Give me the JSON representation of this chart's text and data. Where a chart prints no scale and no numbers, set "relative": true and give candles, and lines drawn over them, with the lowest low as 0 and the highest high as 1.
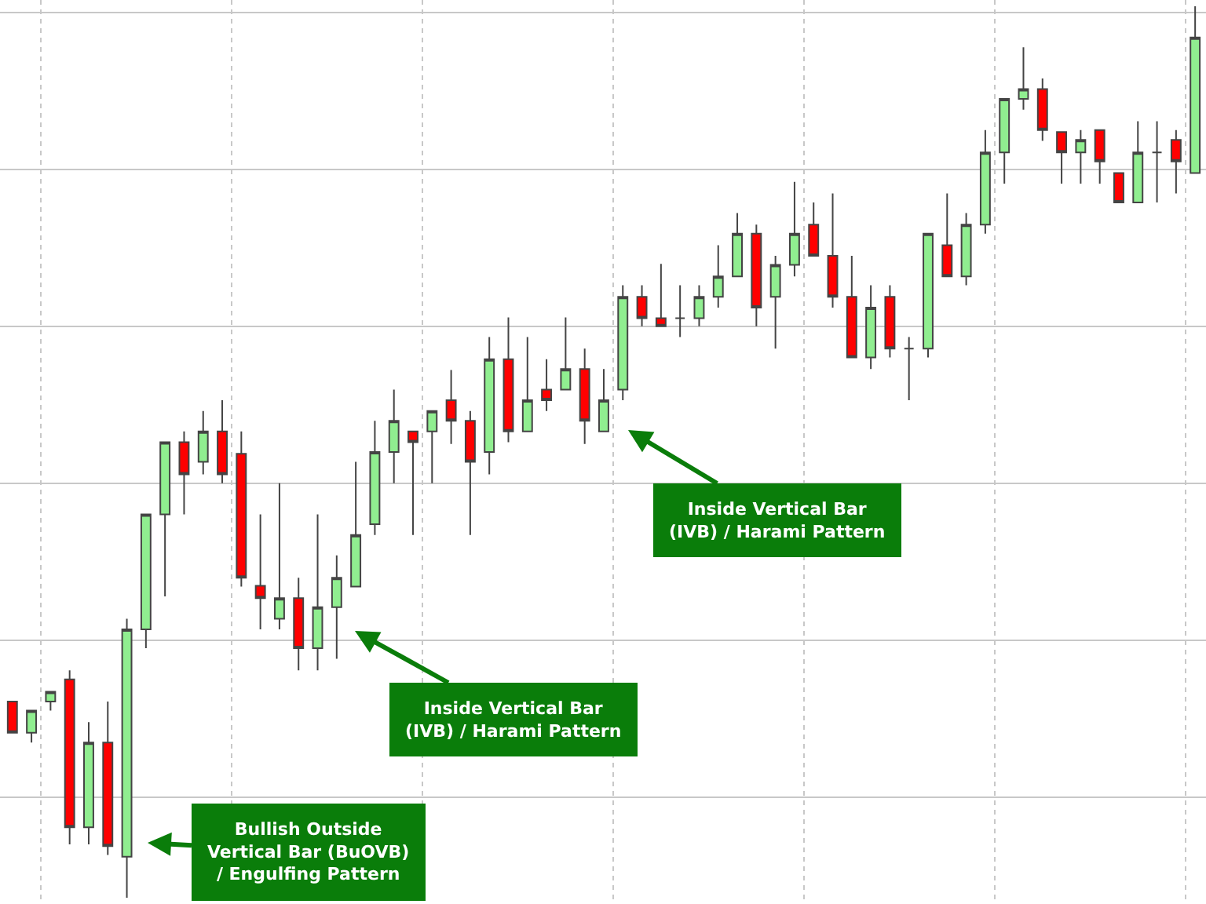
{
  "chart_data": {
    "type": "candlestick",
    "relative": true,
    "grid": true,
    "categories": [
      null,
      null,
      null,
      null,
      null,
      null,
      null,
      null,
      null,
      null,
      null,
      null,
      null,
      null,
      null,
      null,
      null,
      null,
      null,
      null,
      null,
      null,
      null,
      null,
      null,
      null,
      null,
      null,
      null,
      null,
      null,
      null,
      null,
      null,
      null,
      null,
      null,
      null,
      null,
      null,
      null,
      null,
      null,
      null,
      null,
      null,
      null,
      null,
      null,
      null,
      null,
      null,
      null,
      null,
      null,
      null,
      null,
      null,
      null,
      null,
      null,
      null,
      null
    ],
    "ohlc": [
      [
        0.22,
        0.22,
        0.185,
        0.185
      ],
      [
        0.185,
        0.21,
        0.174,
        0.21
      ],
      [
        0.22,
        0.231,
        0.21,
        0.231
      ],
      [
        0.245,
        0.255,
        0.06,
        0.079
      ],
      [
        0.079,
        0.197,
        0.06,
        0.174
      ],
      [
        0.174,
        0.22,
        0.048,
        0.058
      ],
      [
        0.046,
        0.313,
        0,
        0.301
      ],
      [
        0.301,
        0.43,
        0.28,
        0.43
      ],
      [
        0.43,
        0.511,
        0.338,
        0.511
      ],
      [
        0.511,
        0.523,
        0.43,
        0.475
      ],
      [
        0.489,
        0.546,
        0.475,
        0.523
      ],
      [
        0.523,
        0.558,
        0.465,
        0.475
      ],
      [
        0.498,
        0.523,
        0.349,
        0.359
      ],
      [
        0.35,
        0.43,
        0.301,
        0.336
      ],
      [
        0.313,
        0.465,
        0.301,
        0.336
      ],
      [
        0.336,
        0.359,
        0.255,
        0.28
      ],
      [
        0.28,
        0.43,
        0.255,
        0.326
      ],
      [
        0.326,
        0.384,
        0.268,
        0.359
      ],
      [
        0.349,
        0.489,
        0.349,
        0.407
      ],
      [
        0.419,
        0.535,
        0.407,
        0.5
      ],
      [
        0.5,
        0.57,
        0.465,
        0.535
      ],
      [
        0.523,
        0.523,
        0.407,
        0.511
      ],
      [
        0.523,
        0.546,
        0.465,
        0.546
      ],
      [
        0.558,
        0.592,
        0.509,
        0.535
      ],
      [
        0.535,
        0.546,
        0.407,
        0.489
      ],
      [
        0.5,
        0.629,
        0.475,
        0.604
      ],
      [
        0.604,
        0.651,
        0.511,
        0.523
      ],
      [
        0.523,
        0.629,
        0.523,
        0.558
      ],
      [
        0.57,
        0.604,
        0.546,
        0.558
      ],
      [
        0.57,
        0.651,
        0.57,
        0.593
      ],
      [
        0.593,
        0.616,
        0.509,
        0.535
      ],
      [
        0.523,
        0.593,
        0.523,
        0.558
      ],
      [
        0.57,
        0.687,
        0.558,
        0.674
      ],
      [
        0.674,
        0.687,
        0.641,
        0.65
      ],
      [
        0.65,
        0.711,
        0.641,
        0.641
      ],
      [
        0.65,
        0.687,
        0.629,
        0.65
      ],
      [
        0.65,
        0.687,
        0.641,
        0.674
      ],
      [
        0.674,
        0.732,
        0.662,
        0.697
      ],
      [
        0.697,
        0.768,
        0.697,
        0.745
      ],
      [
        0.745,
        0.755,
        0.641,
        0.662
      ],
      [
        0.674,
        0.72,
        0.616,
        0.71
      ],
      [
        0.71,
        0.803,
        0.697,
        0.745
      ],
      [
        0.755,
        0.78,
        0.72,
        0.72
      ],
      [
        0.72,
        0.79,
        0.662,
        0.674
      ],
      [
        0.674,
        0.72,
        0.606,
        0.606
      ],
      [
        0.606,
        0.687,
        0.593,
        0.662
      ],
      [
        0.674,
        0.687,
        0.606,
        0.616
      ],
      [
        0.616,
        0.629,
        0.558,
        0.616
      ],
      [
        0.616,
        0.745,
        0.606,
        0.745
      ],
      [
        0.732,
        0.79,
        0.697,
        0.697
      ],
      [
        0.697,
        0.768,
        0.687,
        0.755
      ],
      [
        0.755,
        0.861,
        0.745,
        0.836
      ],
      [
        0.836,
        0.896,
        0.801,
        0.896
      ],
      [
        0.896,
        0.954,
        0.884,
        0.907
      ],
      [
        0.907,
        0.919,
        0.849,
        0.861
      ],
      [
        0.859,
        0.859,
        0.801,
        0.836
      ],
      [
        0.836,
        0.861,
        0.801,
        0.85
      ],
      [
        0.861,
        0.861,
        0.801,
        0.826
      ],
      [
        0.813,
        0.813,
        0.78,
        0.78
      ],
      [
        0.78,
        0.871,
        0.78,
        0.836
      ],
      [
        0.836,
        0.871,
        0.78,
        0.836
      ],
      [
        0.85,
        0.861,
        0.79,
        0.826
      ],
      [
        0.813,
        1,
        0.813,
        0.965
      ]
    ],
    "annotations": [
      "Inside Vertical Bar\n(IVB) / Harami Pattern",
      "Inside Vertical Bar\n(IVB) / Harami Pattern",
      "Bullish Outside\nVertical Bar (BuOVB)\n/ Engulfing Pattern"
    ]
  }
}
